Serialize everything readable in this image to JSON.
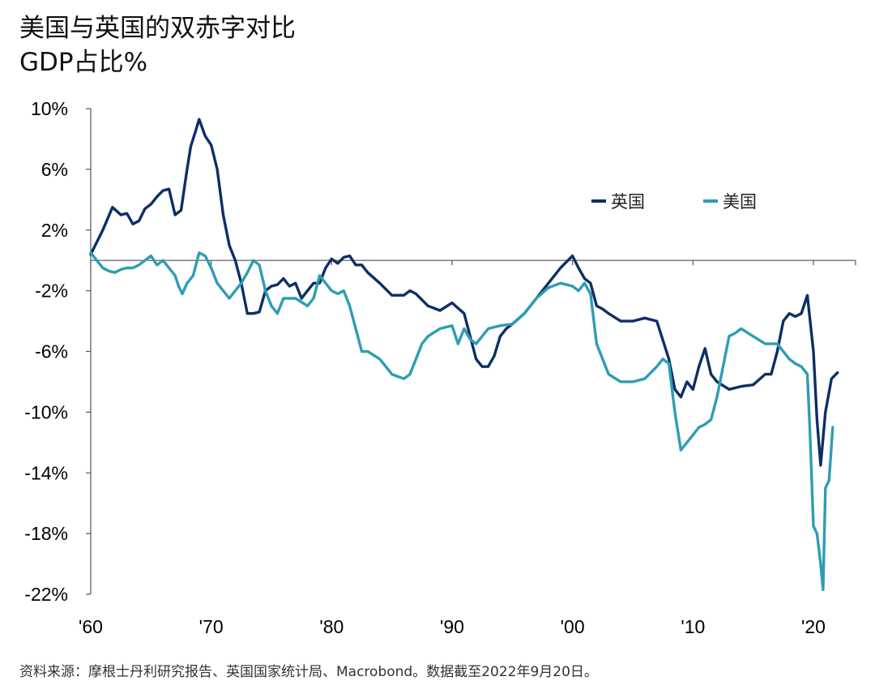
{
  "title": {
    "line1": "美国与英国的双赤字对比",
    "line2": "GDP占比%"
  },
  "source": "资料来源：摩根士丹利研究报告、英国国家统计局、Macrobond。数据截至2022年9月20日。",
  "colors": {
    "uk": "#0d2f66",
    "us": "#2e9db3",
    "axis": "#555555"
  },
  "chart_data": {
    "type": "line",
    "title": "美国与英国的双赤字对比",
    "ylabel": "GDP占比%",
    "ylim": [
      -22,
      10
    ],
    "xlim": [
      1960,
      2023.5
    ],
    "y_ticks": [
      10,
      6,
      2,
      -2,
      -6,
      -10,
      -14,
      -18,
      -22
    ],
    "y_tick_labels": [
      "10%",
      "6%",
      "2%",
      "-2%",
      "-6%",
      "-10%",
      "-14%",
      "-18%",
      "-22%"
    ],
    "x_ticks": [
      1960,
      1970,
      1980,
      1990,
      2000,
      2010,
      2020
    ],
    "x_tick_labels": [
      "'60",
      "'70",
      "'80",
      "'90",
      "'00",
      "'10",
      "'20"
    ],
    "zero_line": 0,
    "legend": {
      "position": "top-right"
    },
    "series": [
      {
        "name": "英国",
        "color": "#0d2f66",
        "x": [
          1960,
          1961,
          1961.8,
          1962.5,
          1963,
          1963.5,
          1964,
          1964.5,
          1965,
          1965.5,
          1966,
          1966.5,
          1967,
          1967.5,
          1968,
          1968.3,
          1968.7,
          1969,
          1969.5,
          1970,
          1970.5,
          1971,
          1971.5,
          1972,
          1972.5,
          1973,
          1973.5,
          1974,
          1974.5,
          1975,
          1975.5,
          1976,
          1976.5,
          1977,
          1977.5,
          1978,
          1978.5,
          1979,
          1979.5,
          1980,
          1980.5,
          1981,
          1981.5,
          1982,
          1982.5,
          1983,
          1984,
          1985,
          1986,
          1986.5,
          1987,
          1988,
          1989,
          1990,
          1991,
          1992,
          1992.5,
          1993,
          1993.5,
          1994,
          1994.5,
          1995,
          1996,
          1997,
          1998,
          1999,
          2000,
          2000.5,
          2001,
          2001.5,
          2002,
          2002.5,
          2003,
          2004,
          2005,
          2006,
          2007,
          2008,
          2008.5,
          2009,
          2009.5,
          2010,
          2010.5,
          2011,
          2011.5,
          2012,
          2013,
          2014,
          2015,
          2016,
          2016.5,
          2017,
          2017.5,
          2018,
          2018.5,
          2019,
          2019.5,
          2020,
          2020.3,
          2020.6,
          2021,
          2021.5,
          2022
        ],
        "values": [
          0.4,
          2.0,
          3.5,
          3.0,
          3.1,
          2.4,
          2.6,
          3.4,
          3.7,
          4.2,
          4.6,
          4.7,
          3.0,
          3.3,
          6.0,
          7.5,
          8.5,
          9.3,
          8.2,
          7.6,
          6.0,
          3.0,
          1.0,
          0.0,
          -1.5,
          -3.5,
          -3.5,
          -3.4,
          -2.0,
          -1.7,
          -1.6,
          -1.2,
          -1.7,
          -1.5,
          -2.5,
          -2.0,
          -1.5,
          -1.5,
          -0.5,
          0.1,
          -0.2,
          0.2,
          0.3,
          -0.3,
          -0.3,
          -0.8,
          -1.5,
          -2.3,
          -2.3,
          -2.0,
          -2.2,
          -3.0,
          -3.3,
          -2.8,
          -3.5,
          -6.5,
          -7.0,
          -7.0,
          -6.3,
          -5.0,
          -4.5,
          -4.2,
          -3.5,
          -2.5,
          -1.5,
          -0.5,
          0.3,
          -0.5,
          -1.2,
          -1.5,
          -3.0,
          -3.2,
          -3.5,
          -4.0,
          -4.0,
          -3.8,
          -4.0,
          -6.5,
          -8.5,
          -9.0,
          -8.0,
          -8.5,
          -7.0,
          -5.8,
          -7.5,
          -8.0,
          -8.5,
          -8.3,
          -8.2,
          -7.5,
          -7.5,
          -6.0,
          -4.0,
          -3.5,
          -3.7,
          -3.5,
          -2.3,
          -6.0,
          -10.5,
          -13.5,
          -10.0,
          -7.8,
          -7.4
        ]
      },
      {
        "name": "美国",
        "color": "#2e9db3",
        "x": [
          1960,
          1960.5,
          1961,
          1961.5,
          1962,
          1962.5,
          1963,
          1963.5,
          1964,
          1964.5,
          1965,
          1965.5,
          1966,
          1966.5,
          1967,
          1967.3,
          1967.6,
          1968,
          1968.5,
          1969,
          1969.5,
          1970,
          1970.5,
          1971,
          1971.5,
          1972,
          1972.5,
          1973,
          1973.5,
          1974,
          1974.5,
          1975,
          1975.5,
          1976,
          1977,
          1978,
          1978.5,
          1979,
          1979.5,
          1980,
          1980.5,
          1981,
          1981.5,
          1982,
          1982.5,
          1983,
          1984,
          1985,
          1986,
          1986.5,
          1987,
          1987.5,
          1988,
          1989,
          1990,
          1990.5,
          1991,
          1991.5,
          1992,
          1992.5,
          1993,
          1994,
          1995,
          1996,
          1997,
          1998,
          1999,
          2000,
          2000.5,
          2001,
          2001.5,
          2002,
          2003,
          2004,
          2005,
          2006,
          2007,
          2007.5,
          2008,
          2008.5,
          2009,
          2009.5,
          2010,
          2010.5,
          2011,
          2011.5,
          2012,
          2012.5,
          2013,
          2013.5,
          2014,
          2015,
          2016,
          2017,
          2017.5,
          2018,
          2018.5,
          2019,
          2019.5,
          2019.7,
          2020,
          2020.3,
          2020.6,
          2020.8,
          2021,
          2021.3,
          2021.6
        ],
        "values": [
          0.5,
          0.0,
          -0.5,
          -0.7,
          -0.8,
          -0.6,
          -0.5,
          -0.5,
          -0.3,
          0.0,
          0.3,
          -0.3,
          0.0,
          -0.5,
          -1.0,
          -1.7,
          -2.2,
          -1.5,
          -1.0,
          0.5,
          0.3,
          -0.5,
          -1.5,
          -2.0,
          -2.5,
          -2.0,
          -1.5,
          -0.8,
          0.0,
          -0.3,
          -2.0,
          -3.0,
          -3.5,
          -2.5,
          -2.5,
          -3.0,
          -2.5,
          -1.0,
          -1.5,
          -2.0,
          -2.2,
          -2.0,
          -3.0,
          -4.5,
          -6.0,
          -6.0,
          -6.5,
          -7.5,
          -7.8,
          -7.5,
          -6.5,
          -5.5,
          -5.0,
          -4.5,
          -4.3,
          -5.5,
          -4.5,
          -5.2,
          -5.5,
          -5.0,
          -4.5,
          -4.3,
          -4.2,
          -3.5,
          -2.5,
          -1.8,
          -1.5,
          -1.7,
          -2.0,
          -1.5,
          -2.2,
          -5.5,
          -7.5,
          -8.0,
          -8.0,
          -7.8,
          -7.0,
          -6.5,
          -6.8,
          -10.0,
          -12.5,
          -12.0,
          -11.5,
          -11.0,
          -10.8,
          -10.5,
          -9.0,
          -7.0,
          -5.0,
          -4.8,
          -4.5,
          -5.0,
          -5.5,
          -5.5,
          -6.0,
          -6.5,
          -6.8,
          -7.0,
          -7.5,
          -11.0,
          -17.5,
          -18.0,
          -20.0,
          -21.7,
          -15.0,
          -14.5,
          -11.0
        ]
      }
    ]
  }
}
